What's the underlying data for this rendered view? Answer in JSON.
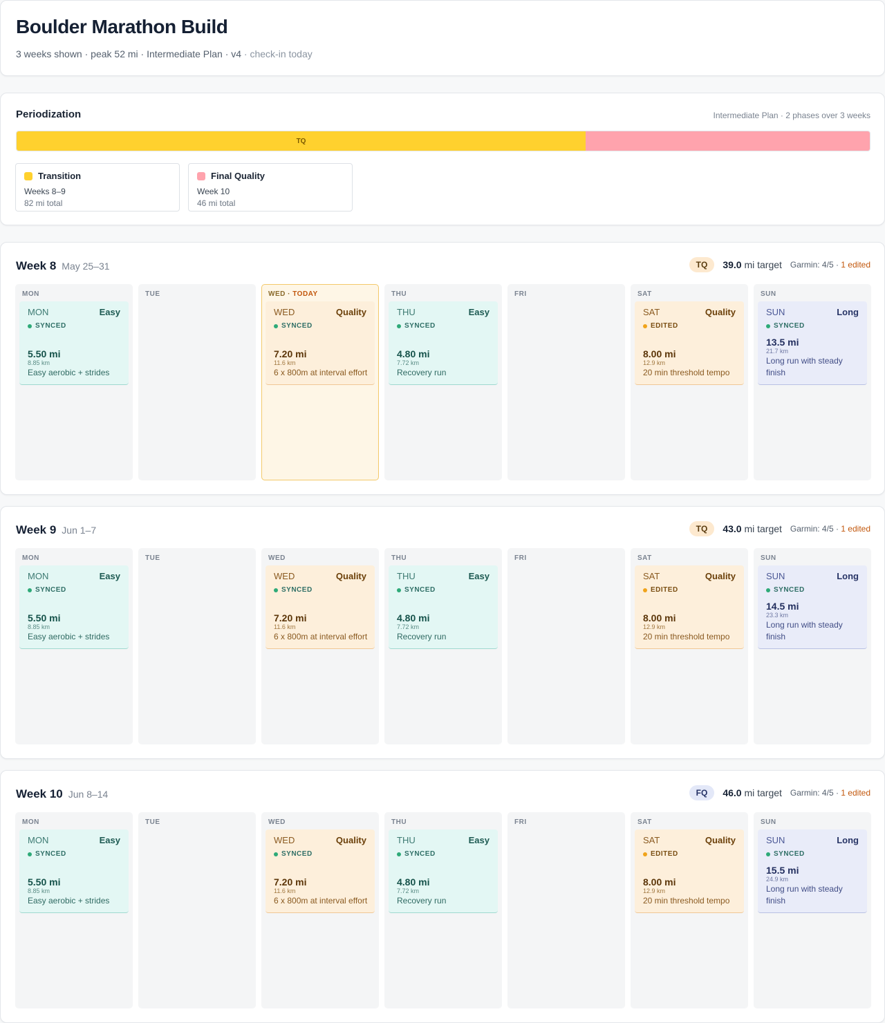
{
  "header": {
    "title": "Boulder Marathon Build",
    "subtitle": "3 weeks shown · peak 52 mi · Intermediate Plan · v4",
    "subtitle_muted": " · check-in today"
  },
  "periodization": {
    "title": "Periodization",
    "meta": "Intermediate Plan · 2 phases over 3 weeks",
    "bar": [
      {
        "label": "TQ",
        "fraction": 0.667,
        "color": "#ffd12e"
      },
      {
        "label": "",
        "fraction": 0.333,
        "color": "#ffa3ad"
      }
    ],
    "phases": [
      {
        "name": "Transition",
        "weeks": "Weeks 8–9",
        "total": "82 mi total",
        "color": "#ffd12e"
      },
      {
        "name": "Final Quality",
        "weeks": "Week 10",
        "total": "46 mi total",
        "color": "#ffa3ad"
      }
    ]
  },
  "weeks": [
    {
      "title": "Week 8",
      "dates": "May 25–31",
      "phase": "TQ",
      "phase_kind": "tq",
      "target_value": "39.0",
      "target_unit": " mi target",
      "garmin": "Garmin: 4/5",
      "edited": "1 edited",
      "days": [
        {
          "label": "MON",
          "workout": {
            "day": "MON",
            "type": "Easy",
            "kind": "easy",
            "status": "SYNCED",
            "status_kind": "synced",
            "mi": "5.50 mi",
            "km": "8.85 km",
            "desc": "Easy aerobic + strides"
          }
        },
        {
          "label": "TUE"
        },
        {
          "label": "WED",
          "today": "TODAY",
          "workout": {
            "day": "WED",
            "type": "Quality",
            "kind": "quality",
            "status": "SYNCED",
            "status_kind": "synced",
            "mi": "7.20 mi",
            "km": "11.6 km",
            "desc": "6 x 800m at interval effort"
          }
        },
        {
          "label": "THU",
          "workout": {
            "day": "THU",
            "type": "Easy",
            "kind": "easy",
            "status": "SYNCED",
            "status_kind": "synced",
            "mi": "4.80 mi",
            "km": "7.72 km",
            "desc": "Recovery run"
          }
        },
        {
          "label": "FRI"
        },
        {
          "label": "SAT",
          "workout": {
            "day": "SAT",
            "type": "Quality",
            "kind": "quality",
            "status": "EDITED",
            "status_kind": "edited",
            "mi": "8.00 mi",
            "km": "12.9 km",
            "desc": "20 min threshold tempo"
          }
        },
        {
          "label": "SUN",
          "workout": {
            "day": "SUN",
            "type": "Long",
            "kind": "long",
            "status": "SYNCED",
            "status_kind": "synced",
            "mi": "13.5 mi",
            "km": "21.7 km",
            "desc": "Long run with steady finish"
          }
        }
      ]
    },
    {
      "title": "Week 9",
      "dates": "Jun 1–7",
      "phase": "TQ",
      "phase_kind": "tq",
      "target_value": "43.0",
      "target_unit": " mi target",
      "garmin": "Garmin: 4/5",
      "edited": "1 edited",
      "days": [
        {
          "label": "MON",
          "workout": {
            "day": "MON",
            "type": "Easy",
            "kind": "easy",
            "status": "SYNCED",
            "status_kind": "synced",
            "mi": "5.50 mi",
            "km": "8.85 km",
            "desc": "Easy aerobic + strides"
          }
        },
        {
          "label": "TUE"
        },
        {
          "label": "WED",
          "workout": {
            "day": "WED",
            "type": "Quality",
            "kind": "quality",
            "status": "SYNCED",
            "status_kind": "synced",
            "mi": "7.20 mi",
            "km": "11.6 km",
            "desc": "6 x 800m at interval effort"
          }
        },
        {
          "label": "THU",
          "workout": {
            "day": "THU",
            "type": "Easy",
            "kind": "easy",
            "status": "SYNCED",
            "status_kind": "synced",
            "mi": "4.80 mi",
            "km": "7.72 km",
            "desc": "Recovery run"
          }
        },
        {
          "label": "FRI"
        },
        {
          "label": "SAT",
          "workout": {
            "day": "SAT",
            "type": "Quality",
            "kind": "quality",
            "status": "EDITED",
            "status_kind": "edited",
            "mi": "8.00 mi",
            "km": "12.9 km",
            "desc": "20 min threshold tempo"
          }
        },
        {
          "label": "SUN",
          "workout": {
            "day": "SUN",
            "type": "Long",
            "kind": "long",
            "status": "SYNCED",
            "status_kind": "synced",
            "mi": "14.5 mi",
            "km": "23.3 km",
            "desc": "Long run with steady finish"
          }
        }
      ]
    },
    {
      "title": "Week 10",
      "dates": "Jun 8–14",
      "phase": "FQ",
      "phase_kind": "fq",
      "target_value": "46.0",
      "target_unit": " mi target",
      "garmin": "Garmin: 4/5",
      "edited": "1 edited",
      "days": [
        {
          "label": "MON",
          "workout": {
            "day": "MON",
            "type": "Easy",
            "kind": "easy",
            "status": "SYNCED",
            "status_kind": "synced",
            "mi": "5.50 mi",
            "km": "8.85 km",
            "desc": "Easy aerobic + strides"
          }
        },
        {
          "label": "TUE"
        },
        {
          "label": "WED",
          "workout": {
            "day": "WED",
            "type": "Quality",
            "kind": "quality",
            "status": "SYNCED",
            "status_kind": "synced",
            "mi": "7.20 mi",
            "km": "11.6 km",
            "desc": "6 x 800m at interval effort"
          }
        },
        {
          "label": "THU",
          "workout": {
            "day": "THU",
            "type": "Easy",
            "kind": "easy",
            "status": "SYNCED",
            "status_kind": "synced",
            "mi": "4.80 mi",
            "km": "7.72 km",
            "desc": "Recovery run"
          }
        },
        {
          "label": "FRI"
        },
        {
          "label": "SAT",
          "workout": {
            "day": "SAT",
            "type": "Quality",
            "kind": "quality",
            "status": "EDITED",
            "status_kind": "edited",
            "mi": "8.00 mi",
            "km": "12.9 km",
            "desc": "20 min threshold tempo"
          }
        },
        {
          "label": "SUN",
          "workout": {
            "day": "SUN",
            "type": "Long",
            "kind": "long",
            "status": "SYNCED",
            "status_kind": "synced",
            "mi": "15.5 mi",
            "km": "24.9 km",
            "desc": "Long run with steady finish"
          }
        }
      ]
    }
  ]
}
